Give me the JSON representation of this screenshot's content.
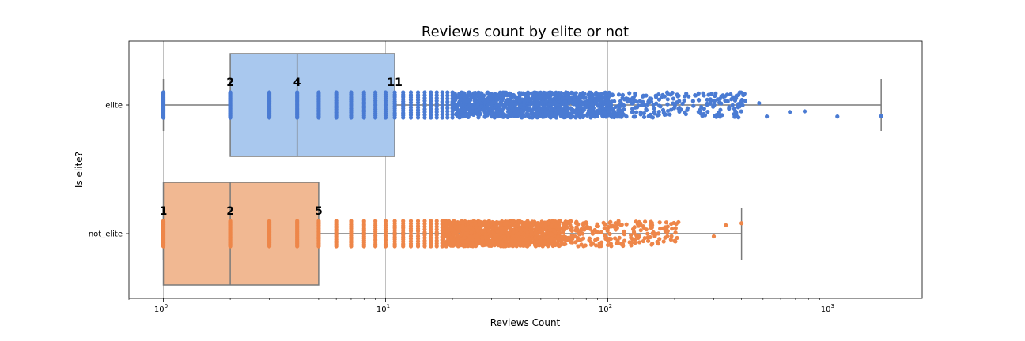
{
  "chart_data": {
    "type": "box",
    "title": "Reviews count by elite or not",
    "xlabel": "Reviews Count",
    "ylabel": "Is elite?",
    "xscale": "log",
    "xlim": [
      0.7,
      2600
    ],
    "grid": "x",
    "xticks": [
      {
        "value": 1,
        "label": "10",
        "exp": "0"
      },
      {
        "value": 10,
        "label": "10",
        "exp": "1"
      },
      {
        "value": 100,
        "label": "10",
        "exp": "2"
      },
      {
        "value": 1000,
        "label": "10",
        "exp": "3"
      }
    ],
    "series": [
      {
        "name": "elite",
        "min": 1,
        "q1": 2,
        "median": 4,
        "q3": 11,
        "max": 1700,
        "box_color": "#a9c8ee",
        "point_color": "#4a7bd3",
        "quartile_labels": [
          "2",
          "4",
          "11"
        ],
        "outliers": [
          480,
          520,
          660,
          770,
          1080,
          1700
        ]
      },
      {
        "name": "not_elite",
        "min": 1,
        "q1": 1,
        "median": 2,
        "q3": 5,
        "max": 400,
        "box_color": "#f1b892",
        "point_color": "#ee8649",
        "quartile_labels": [
          "1",
          "2",
          "5"
        ],
        "outliers": [
          300,
          340,
          400
        ]
      }
    ]
  }
}
